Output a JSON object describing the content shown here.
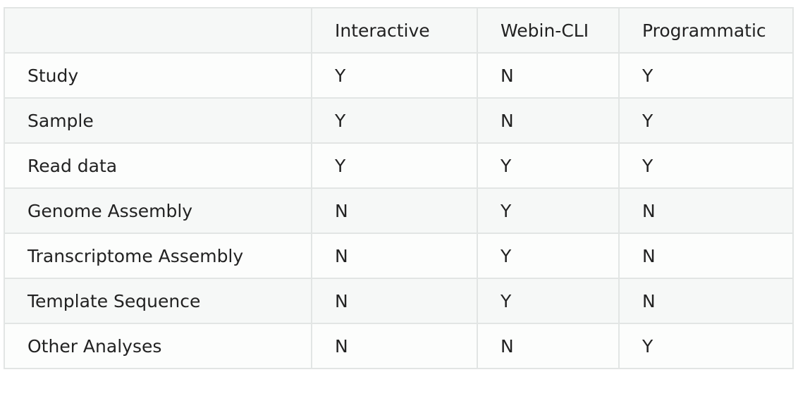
{
  "table": {
    "headers": [
      "",
      "Interactive",
      "Webin-CLI",
      "Programmatic"
    ],
    "rows": [
      [
        "Study",
        "Y",
        "N",
        "Y"
      ],
      [
        "Sample",
        "Y",
        "N",
        "Y"
      ],
      [
        "Read data",
        "Y",
        "Y",
        "Y"
      ],
      [
        "Genome Assembly",
        "N",
        "Y",
        "N"
      ],
      [
        "Transcriptome Assembly",
        "N",
        "Y",
        "N"
      ],
      [
        "Template Sequence",
        "N",
        "Y",
        "N"
      ],
      [
        "Other Analyses",
        "N",
        "N",
        "Y"
      ]
    ]
  }
}
